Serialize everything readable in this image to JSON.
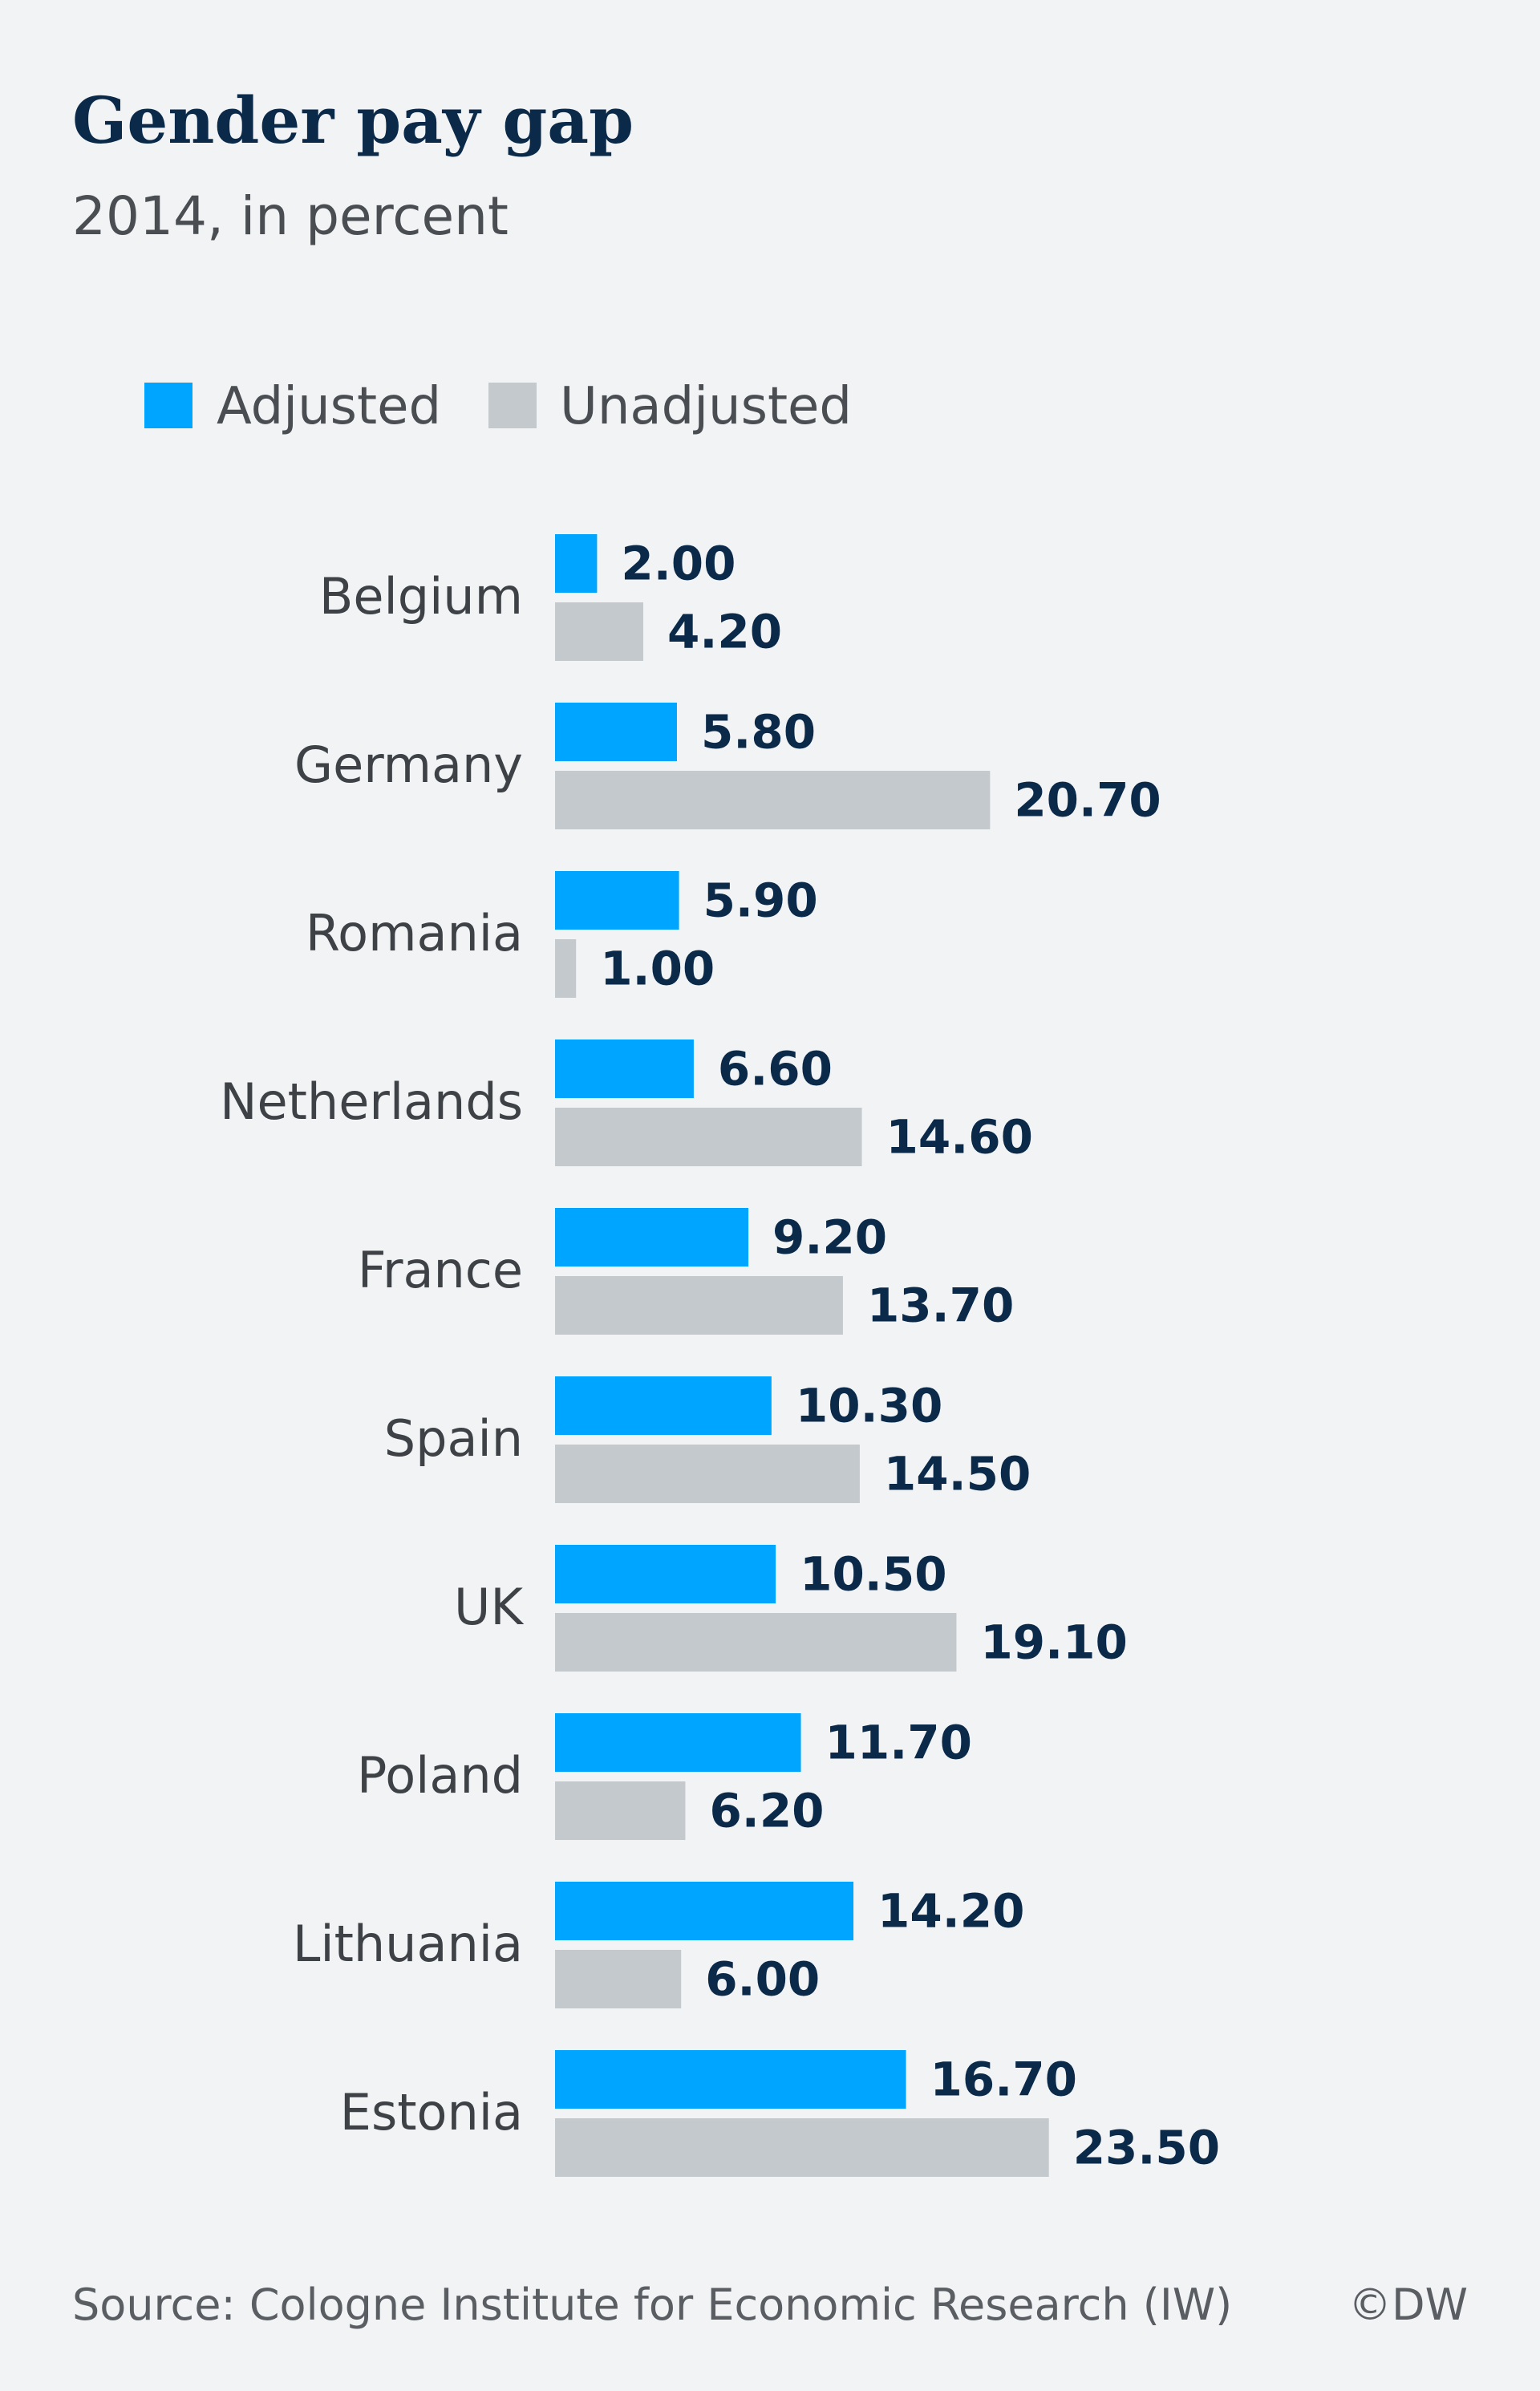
{
  "chart_data": {
    "type": "bar",
    "orientation": "horizontal",
    "title": "Gender pay gap",
    "subtitle": "2014, in percent",
    "categories": [
      "Belgium",
      "Germany",
      "Romania",
      "Netherlands",
      "France",
      "Spain",
      "UK",
      "Poland",
      "Lithuania",
      "Estonia"
    ],
    "series": [
      {
        "name": "Adjusted",
        "color": "#00a5ff",
        "values": [
          2.0,
          5.8,
          5.9,
          6.6,
          9.2,
          10.3,
          10.5,
          11.7,
          14.2,
          16.7
        ],
        "labels": [
          "2.00",
          "5.80",
          "5.90",
          "6.60",
          "9.20",
          "10.30",
          "10.50",
          "11.70",
          "14.20",
          "16.70"
        ]
      },
      {
        "name": "Unadjusted",
        "color": "#c4c9ce",
        "values": [
          4.2,
          20.7,
          1.0,
          14.6,
          13.7,
          14.5,
          19.1,
          6.2,
          6.0,
          23.5
        ],
        "labels": [
          "4.20",
          "20.70",
          "1.00",
          "14.60",
          "13.70",
          "14.50",
          "19.10",
          "6.20",
          "6.00",
          "23.50"
        ]
      }
    ],
    "xlim": [
      0,
      25
    ],
    "grid": false,
    "legend": "top-left",
    "source": "Source: Cologne Institute for Economic Research (IW)",
    "credit": "©DW"
  },
  "colors": {
    "background": "#f1f3f5",
    "title": "#0b2a4a",
    "value_label": "#0b2a4a",
    "text": "#3e4247"
  }
}
